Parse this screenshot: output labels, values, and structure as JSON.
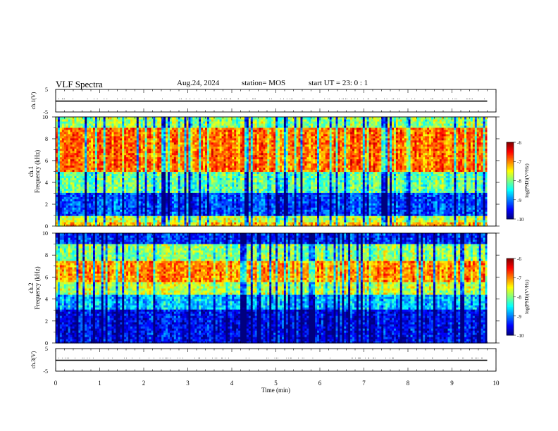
{
  "header": {
    "title": "VLF Spectra",
    "date": "Aug.24, 2024",
    "station": "station= MOS",
    "start": "start  UT =   23: 0  : 1"
  },
  "chart_data": [
    {
      "type": "line",
      "ylabel": "ch.1(V)",
      "ylim": [
        -5,
        5
      ],
      "y_ticks": [
        "5",
        "-5"
      ],
      "x": [
        0,
        9.8
      ],
      "values": [
        -0.2,
        -0.2
      ]
    },
    {
      "type": "heatmap",
      "ylabel": "Frequency (kHz)",
      "channel_label": "ch.1",
      "ylim": [
        0,
        10
      ],
      "y_ticks": [
        "0",
        "2",
        "4",
        "6",
        "8",
        "10"
      ],
      "colorbar": {
        "label": "log(PSD)(V²/Hz)",
        "range": [
          -10,
          -6
        ],
        "ticks": [
          "-6",
          "-7",
          "-8",
          "-9",
          "-10"
        ]
      },
      "bands": [
        {
          "from_khz": 0,
          "to_khz": 0.4,
          "level": -7.3
        },
        {
          "from_khz": 0.4,
          "to_khz": 1.0,
          "level": -7.8
        },
        {
          "from_khz": 1.0,
          "to_khz": 3.0,
          "level": -9.3
        },
        {
          "from_khz": 3.0,
          "to_khz": 5.0,
          "level": -8.2
        },
        {
          "from_khz": 5.0,
          "to_khz": 9.0,
          "level": -7.0
        },
        {
          "from_khz": 9.0,
          "to_khz": 10.0,
          "level": -8.0
        }
      ]
    },
    {
      "type": "heatmap",
      "ylabel": "Frequency (kHz)",
      "channel_label": "ch.2",
      "ylim": [
        0,
        10
      ],
      "y_ticks": [
        "0",
        "2",
        "4",
        "6",
        "8",
        "10"
      ],
      "colorbar": {
        "label": "log(PSD)(V²/Hz)",
        "range": [
          -10,
          -6
        ],
        "ticks": [
          "-6",
          "-7",
          "-8",
          "-9",
          "-10"
        ]
      },
      "bands": [
        {
          "from_khz": 0,
          "to_khz": 3.0,
          "level": -9.6
        },
        {
          "from_khz": 3.0,
          "to_khz": 4.5,
          "level": -8.8
        },
        {
          "from_khz": 4.5,
          "to_khz": 5.5,
          "level": -7.8
        },
        {
          "from_khz": 5.5,
          "to_khz": 7.5,
          "level": -7.1
        },
        {
          "from_khz": 7.5,
          "to_khz": 9.0,
          "level": -8.0
        },
        {
          "from_khz": 9.0,
          "to_khz": 10.0,
          "level": -9.4
        }
      ]
    },
    {
      "type": "line",
      "ylabel": "ch.3(V)",
      "ylim": [
        -5,
        5
      ],
      "y_ticks": [
        "5",
        "-5"
      ],
      "x": [
        0,
        9.8
      ],
      "values": [
        -0.2,
        -0.2
      ]
    }
  ],
  "x_axis": {
    "label": "Time  (min)",
    "range": [
      0,
      10
    ],
    "ticks": [
      "0",
      "1",
      "2",
      "3",
      "4",
      "5",
      "6",
      "7",
      "8",
      "9",
      "10"
    ]
  }
}
